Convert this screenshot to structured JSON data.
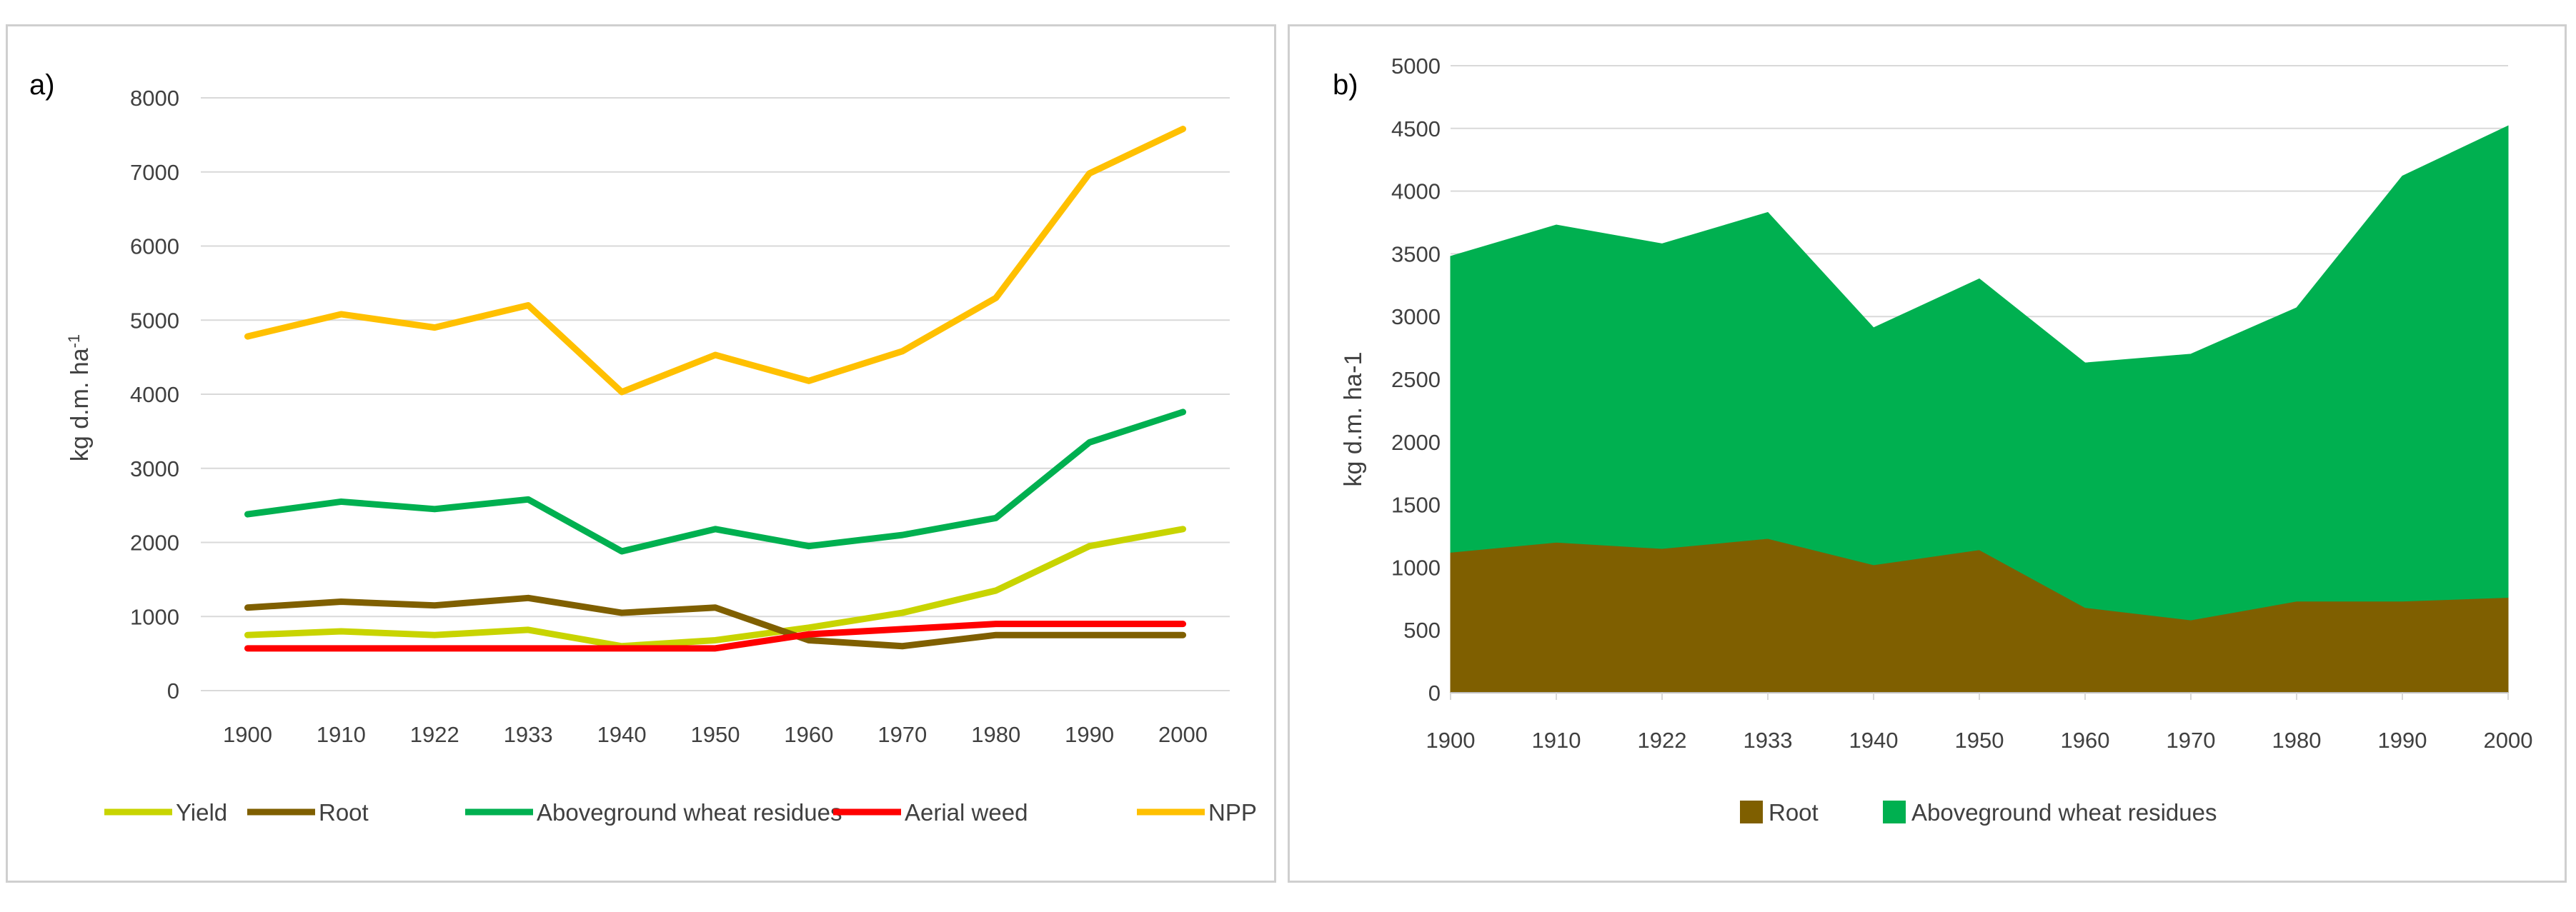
{
  "chart_data": [
    {
      "type": "line",
      "panel_label": "a)",
      "ylabel_prefix": "kg d.m. ha",
      "ylabel_superscript": "-1",
      "ylim": [
        0,
        8000
      ],
      "yticks": [
        0,
        1000,
        2000,
        3000,
        4000,
        5000,
        6000,
        7000,
        8000
      ],
      "ytick_labels": [
        "0",
        "1000",
        "2000",
        "3000",
        "4000",
        "5000",
        "6000",
        "7000",
        "8000"
      ],
      "grid": true,
      "legend_position": "bottom",
      "categories": [
        "1900",
        "1910",
        "1922",
        "1933",
        "1940",
        "1950",
        "1960",
        "1970",
        "1980",
        "1990",
        "2000"
      ],
      "series": [
        {
          "name": "Yield",
          "color": "#c8d400",
          "values": [
            750,
            800,
            750,
            820,
            600,
            680,
            850,
            1050,
            1350,
            1950,
            2180
          ]
        },
        {
          "name": "Root",
          "color": "#7f5f00",
          "values": [
            1120,
            1200,
            1150,
            1250,
            1050,
            1120,
            680,
            600,
            750,
            750,
            750
          ]
        },
        {
          "name": "Aboveground wheat residues",
          "color": "#00b050",
          "values": [
            2380,
            2550,
            2450,
            2580,
            1880,
            2180,
            1950,
            2100,
            2330,
            3350,
            3760
          ]
        },
        {
          "name": "Aerial weed",
          "color": "#ff0000",
          "values": [
            570,
            570,
            570,
            570,
            570,
            570,
            760,
            830,
            900,
            900,
            900
          ]
        },
        {
          "name": "NPP",
          "color": "#ffc000",
          "values": [
            4780,
            5080,
            4900,
            5200,
            4030,
            4530,
            4180,
            4580,
            5300,
            6980,
            7580
          ]
        }
      ]
    },
    {
      "type": "area",
      "stacked": true,
      "panel_label": "b)",
      "ylabel": "kg d.m. ha-1",
      "ylim": [
        0,
        5000
      ],
      "yticks": [
        0,
        500,
        1000,
        1500,
        2000,
        2500,
        3000,
        3500,
        4000,
        4500,
        5000
      ],
      "ytick_labels": [
        "0",
        "500",
        "1000",
        "1500",
        "2000",
        "2500",
        "3000",
        "3500",
        "4000",
        "4500",
        "5000"
      ],
      "grid": true,
      "legend_position": "bottom",
      "categories": [
        "1900",
        "1910",
        "1922",
        "1933",
        "1940",
        "1950",
        "1960",
        "1970",
        "1980",
        "1990",
        "2000"
      ],
      "series": [
        {
          "name": "Root",
          "color": "#7f5f00",
          "values": [
            1120,
            1200,
            1150,
            1230,
            1020,
            1140,
            680,
            580,
            730,
            730,
            760
          ]
        },
        {
          "name": "Aboveground wheat residues",
          "color": "#00b050",
          "values": [
            2360,
            2530,
            2430,
            2600,
            1890,
            2160,
            1950,
            2120,
            2340,
            3390,
            3760
          ]
        }
      ]
    }
  ]
}
